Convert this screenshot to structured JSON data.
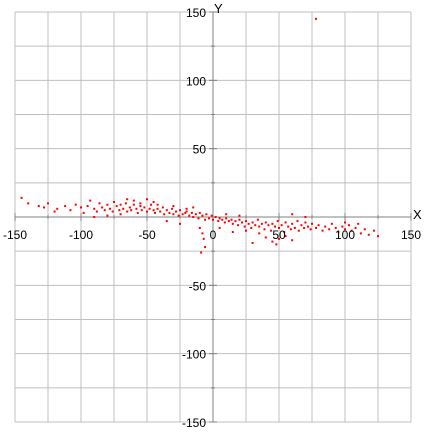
{
  "chart_data": {
    "type": "scatter",
    "title": "",
    "xlabel": "X",
    "ylabel": "Y",
    "xlim": [
      -150,
      150
    ],
    "ylim": [
      -150,
      150
    ],
    "x_major_ticks": [
      -150,
      -100,
      -50,
      0,
      50,
      100,
      150
    ],
    "y_major_ticks": [
      -150,
      -100,
      -50,
      50,
      100,
      150
    ],
    "x_tick_labels": [
      "-150",
      "-100",
      "-50",
      "0",
      "50",
      "100",
      "150"
    ],
    "y_tick_labels": [
      "-150",
      "-100",
      "-50",
      "50",
      "100",
      "150"
    ],
    "grid": true,
    "minor_grid_step": 25,
    "marker_color": "#ff0000",
    "grid_color": "#c0c0c0",
    "axis_color": "#808080",
    "points": [
      [
        78,
        145
      ],
      [
        -145,
        14
      ],
      [
        -140,
        10
      ],
      [
        -132,
        8
      ],
      [
        -128,
        7
      ],
      [
        -125,
        10
      ],
      [
        -120,
        4
      ],
      [
        -118,
        6
      ],
      [
        -112,
        8
      ],
      [
        -108,
        5
      ],
      [
        -104,
        9
      ],
      [
        -100,
        7
      ],
      [
        -98,
        3
      ],
      [
        -95,
        8
      ],
      [
        -93,
        12
      ],
      [
        -90,
        6
      ],
      [
        -88,
        4
      ],
      [
        -86,
        10
      ],
      [
        -84,
        7
      ],
      [
        -82,
        5
      ],
      [
        -80,
        9
      ],
      [
        -78,
        6
      ],
      [
        -76,
        4
      ],
      [
        -75,
        11
      ],
      [
        -73,
        8
      ],
      [
        -71,
        5
      ],
      [
        -70,
        9
      ],
      [
        -68,
        6
      ],
      [
        -66,
        10
      ],
      [
        -65,
        4
      ],
      [
        -63,
        7
      ],
      [
        -62,
        5
      ],
      [
        -60,
        9
      ],
      [
        -58,
        6
      ],
      [
        -57,
        3
      ],
      [
        -55,
        8
      ],
      [
        -54,
        5
      ],
      [
        -52,
        7
      ],
      [
        -50,
        4
      ],
      [
        -48,
        6
      ],
      [
        -47,
        9
      ],
      [
        -45,
        5
      ],
      [
        -44,
        3
      ],
      [
        -42,
        6
      ],
      [
        -40,
        4
      ],
      [
        -38,
        7
      ],
      [
        -37,
        2
      ],
      [
        -35,
        5
      ],
      [
        -33,
        3
      ],
      [
        -31,
        6
      ],
      [
        -30,
        2
      ],
      [
        -28,
        4
      ],
      [
        -26,
        1
      ],
      [
        -25,
        5
      ],
      [
        -23,
        2
      ],
      [
        -21,
        3
      ],
      [
        -20,
        6
      ],
      [
        -18,
        1
      ],
      [
        -16,
        3
      ],
      [
        -15,
        0
      ],
      [
        -13,
        2
      ],
      [
        -11,
        -1
      ],
      [
        -10,
        3
      ],
      [
        -8,
        1
      ],
      [
        -6,
        -2
      ],
      [
        -5,
        2
      ],
      [
        -3,
        -1
      ],
      [
        -1,
        1
      ],
      [
        0,
        -2
      ],
      [
        2,
        0
      ],
      [
        4,
        -3
      ],
      [
        5,
        -1
      ],
      [
        7,
        -2
      ],
      [
        9,
        -4
      ],
      [
        10,
        -1
      ],
      [
        12,
        -3
      ],
      [
        14,
        -2
      ],
      [
        15,
        -5
      ],
      [
        17,
        -3
      ],
      [
        19,
        -6
      ],
      [
        20,
        -2
      ],
      [
        22,
        -4
      ],
      [
        24,
        -7
      ],
      [
        25,
        -3
      ],
      [
        27,
        -5
      ],
      [
        29,
        -8
      ],
      [
        30,
        -4
      ],
      [
        32,
        -6
      ],
      [
        34,
        -2
      ],
      [
        35,
        -7
      ],
      [
        37,
        -5
      ],
      [
        39,
        -9
      ],
      [
        40,
        -4
      ],
      [
        42,
        -6
      ],
      [
        44,
        -10
      ],
      [
        45,
        -5
      ],
      [
        47,
        -7
      ],
      [
        49,
        -3
      ],
      [
        50,
        -8
      ],
      [
        52,
        -6
      ],
      [
        54,
        -11
      ],
      [
        55,
        -4
      ],
      [
        57,
        -7
      ],
      [
        59,
        -9
      ],
      [
        60,
        -5
      ],
      [
        62,
        -8
      ],
      [
        64,
        -3
      ],
      [
        65,
        -10
      ],
      [
        67,
        -6
      ],
      [
        69,
        -8
      ],
      [
        70,
        -4
      ],
      [
        72,
        -7
      ],
      [
        74,
        -9
      ],
      [
        75,
        -5
      ],
      [
        78,
        -8
      ],
      [
        80,
        -6
      ],
      [
        83,
        -10
      ],
      [
        85,
        -7
      ],
      [
        88,
        -9
      ],
      [
        90,
        -5
      ],
      [
        93,
        -8
      ],
      [
        95,
        -11
      ],
      [
        98,
        -7
      ],
      [
        100,
        -9
      ],
      [
        103,
        -6
      ],
      [
        105,
        -10
      ],
      [
        108,
        -8
      ],
      [
        112,
        -12
      ],
      [
        115,
        -9
      ],
      [
        118,
        -13
      ],
      [
        122,
        -10
      ],
      [
        125,
        -14
      ],
      [
        -60,
        12
      ],
      [
        -55,
        10
      ],
      [
        -42,
        9
      ],
      [
        -30,
        8
      ],
      [
        -20,
        4
      ],
      [
        -15,
        7
      ],
      [
        10,
        2
      ],
      [
        20,
        1
      ],
      [
        35,
        -12
      ],
      [
        40,
        -15
      ],
      [
        45,
        -18
      ],
      [
        48,
        -20
      ],
      [
        50,
        -16
      ],
      [
        55,
        -14
      ],
      [
        60,
        -17
      ],
      [
        -10,
        -8
      ],
      [
        -8,
        -12
      ],
      [
        -7,
        -16
      ],
      [
        -6,
        -22
      ],
      [
        -9,
        -26
      ],
      [
        30,
        -19
      ],
      [
        25,
        -10
      ],
      [
        -35,
        -3
      ],
      [
        -25,
        -5
      ],
      [
        -70,
        2
      ],
      [
        -80,
        1
      ],
      [
        -90,
        0
      ],
      [
        60,
        2
      ],
      [
        70,
        0
      ],
      [
        -50,
        13
      ],
      [
        -65,
        13
      ],
      [
        -45,
        11
      ],
      [
        15,
        -11
      ],
      [
        5,
        -8
      ],
      [
        100,
        -4
      ],
      [
        110,
        -5
      ]
    ]
  }
}
